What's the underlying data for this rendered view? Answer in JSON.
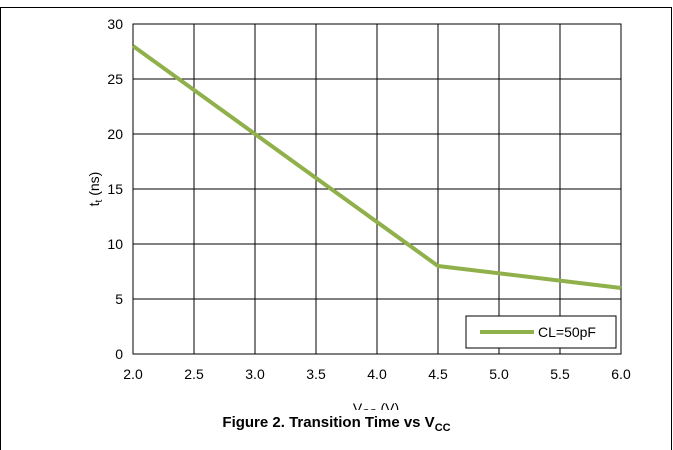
{
  "chart_data": {
    "type": "line",
    "title": "",
    "xlabel": "VCC (V)",
    "xlabel_parts": {
      "main": "V",
      "sub": "CC",
      "rest": " (V)"
    },
    "ylabel": "tt (ns)",
    "ylabel_parts": {
      "main": "t",
      "sub": "t",
      "rest": " (ns)"
    },
    "xlim": [
      2.0,
      6.0
    ],
    "ylim": [
      0,
      30
    ],
    "x_ticks": [
      "2.0",
      "2.5",
      "3.0",
      "3.5",
      "4.0",
      "4.5",
      "5.0",
      "5.5",
      "6.0"
    ],
    "y_ticks": [
      "0",
      "5",
      "10",
      "15",
      "20",
      "25",
      "30"
    ],
    "grid": true,
    "legend_position": "bottom-right",
    "series": [
      {
        "name": "CL=50pF",
        "color": "#8fb04a",
        "x": [
          2.0,
          3.0,
          4.0,
          4.5,
          6.0
        ],
        "y": [
          28,
          20,
          12,
          8,
          6
        ]
      }
    ]
  },
  "figure": {
    "caption_main": "Figure 2. Transition Time vs V",
    "caption_sub": "CC"
  }
}
